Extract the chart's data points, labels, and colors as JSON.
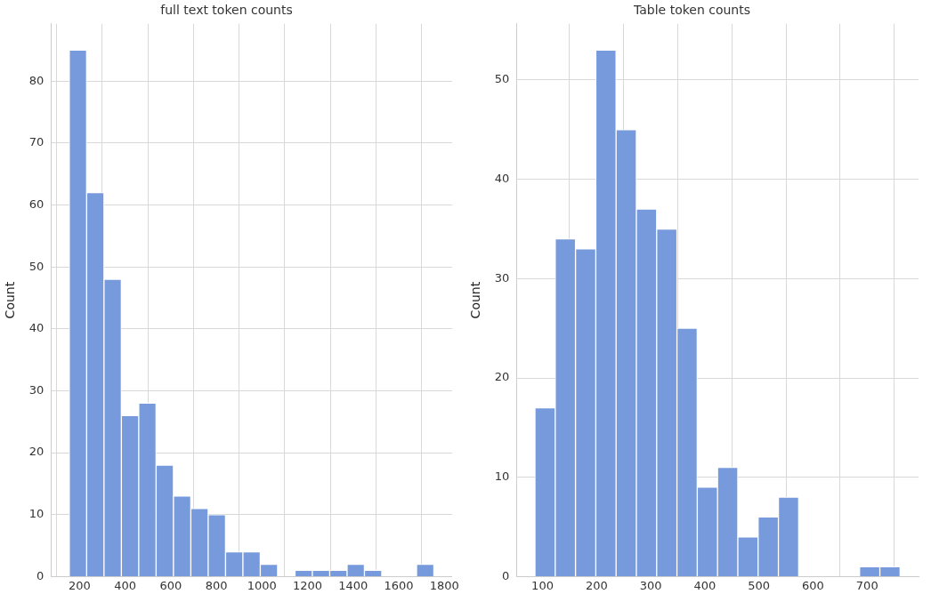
{
  "chart_data": [
    {
      "type": "histogram",
      "title": "full text token counts",
      "ylabel": "Count",
      "color": "#769adc",
      "bins": [
        155,
        231.1,
        307.3,
        383.4,
        459.6,
        535.7,
        611.9,
        688,
        764.1,
        840.3,
        916.4,
        992.6,
        1068.7,
        1144.9,
        1221,
        1297.1,
        1373.3,
        1449.4,
        1525.6,
        1601.7,
        1677.9,
        1754
      ],
      "values": [
        85,
        62,
        48,
        26,
        28,
        18,
        13,
        11,
        10,
        4,
        4,
        2,
        0,
        1,
        1,
        1,
        2,
        1,
        0,
        0,
        2
      ],
      "xlim": [
        75,
        1834
      ],
      "ylim": [
        0,
        89.25
      ],
      "xticks": [
        200,
        400,
        600,
        800,
        1000,
        1200,
        1400,
        1600,
        1800
      ],
      "yticks": [
        0,
        10,
        20,
        30,
        40,
        50,
        60,
        70,
        80
      ],
      "grid": true
    },
    {
      "type": "histogram",
      "title": "Table token counts",
      "ylabel": "Count",
      "color": "#769adc",
      "bins": [
        86,
        123.5,
        161,
        198.5,
        236,
        273.5,
        311,
        348.5,
        386,
        423.5,
        461,
        498.5,
        536,
        573.5,
        611,
        648.5,
        686,
        723.5,
        761
      ],
      "values": [
        17,
        34,
        33,
        53,
        45,
        37,
        35,
        25,
        9,
        11,
        4,
        6,
        8,
        0,
        0,
        0,
        1,
        1
      ],
      "xlim": [
        52,
        795
      ],
      "ylim": [
        0,
        55.65
      ],
      "xticks": [
        100,
        200,
        300,
        400,
        500,
        600,
        700
      ],
      "yticks": [
        0,
        10,
        20,
        30,
        40,
        50
      ],
      "grid": true
    }
  ]
}
